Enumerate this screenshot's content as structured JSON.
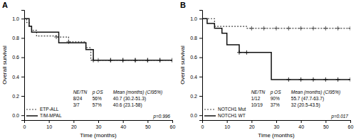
{
  "chart_data": [
    {
      "type": "step",
      "title": "A",
      "x_label": "Time (months)",
      "y_label": "Overall survival",
      "xlim": [
        0,
        60
      ],
      "ylim": [
        -0.05,
        1.09
      ],
      "xticks": [
        0,
        10,
        20,
        30,
        40,
        50,
        60
      ],
      "yticks": [
        {
          "value": 0.0,
          "label": "0.0"
        },
        0.2,
        0.4,
        0.6,
        0.8,
        {
          "value": 1.0,
          "label": "1.0"
        }
      ],
      "legend": "lower left",
      "series": [
        {
          "name": "ETP-ALL",
          "color": "#444444",
          "line_style": "dotted",
          "marker": "plus",
          "x": [
            0,
            1,
            2,
            3,
            5,
            8,
            10,
            13,
            15,
            18,
            20,
            25,
            27,
            30,
            60
          ],
          "values": [
            1.0,
            0.96,
            0.92,
            0.88,
            0.82,
            0.82,
            0.82,
            0.81,
            0.81,
            0.76,
            0.76,
            0.7,
            0.57,
            0.57,
            0.57
          ],
          "censor_x": [
            13,
            18,
            30,
            35,
            40,
            45,
            50,
            55,
            60
          ],
          "censor_values": [
            0.81,
            0.76,
            0.57,
            0.57,
            0.57,
            0.57,
            0.57,
            0.57,
            0.57
          ]
        },
        {
          "name": "T/M-MPAL",
          "color": "#111111",
          "line_style": "solid",
          "marker": "plus",
          "x": [
            0,
            2,
            3,
            10,
            13,
            14,
            17,
            25,
            27,
            28,
            60
          ],
          "values": [
            1.0,
            0.92,
            0.86,
            0.86,
            0.86,
            0.75,
            0.75,
            0.68,
            0.68,
            0.57,
            0.57
          ],
          "censor_x": [
            28,
            35,
            40,
            45,
            50,
            55,
            60
          ],
          "censor_values": [
            0.57,
            0.57,
            0.57,
            0.57,
            0.57,
            0.57,
            0.57
          ]
        }
      ],
      "table": {
        "header": [
          "NE/TN",
          "p OS",
          "Mean (months) (CI95%)"
        ],
        "rows": [
          [
            "8/24",
            "56%",
            "40.7 (30.2-51.3)"
          ],
          [
            "3/7",
            "57%",
            "40.6 (23.1-58)"
          ]
        ]
      },
      "annotations": [
        "p=0.996"
      ]
    },
    {
      "type": "step",
      "title": "B",
      "x_label": "Time (months)",
      "y_label": "Overall survival",
      "xlim": [
        0,
        60
      ],
      "ylim": [
        -0.05,
        1.09
      ],
      "xticks": [
        0,
        10,
        20,
        30,
        40,
        50,
        60
      ],
      "yticks": [
        {
          "value": 0.0,
          "label": "0.0"
        },
        0.2,
        0.4,
        0.6,
        0.8,
        {
          "value": 1.0,
          "label": "1.0"
        }
      ],
      "legend": "lower left",
      "series": [
        {
          "name": "NOTCH1 Mut",
          "color": "#444444",
          "line_style": "dotted",
          "marker": "plus",
          "x": [
            0,
            3,
            5,
            13,
            18,
            60
          ],
          "values": [
            1.0,
            1.0,
            0.92,
            0.92,
            0.9,
            0.9
          ],
          "censor_x": [
            20,
            25,
            30,
            35,
            40,
            45,
            50,
            55,
            60
          ],
          "censor_values": [
            0.9,
            0.9,
            0.9,
            0.9,
            0.9,
            0.9,
            0.9,
            0.9,
            0.9
          ]
        },
        {
          "name": "NOTCH1 WT",
          "color": "#111111",
          "line_style": "solid",
          "marker": "plus",
          "x": [
            0,
            2,
            5,
            8,
            10,
            13,
            15,
            18,
            25,
            28,
            60
          ],
          "values": [
            1.0,
            0.95,
            0.9,
            0.85,
            0.73,
            0.73,
            0.65,
            0.65,
            0.65,
            0.37,
            0.37
          ],
          "censor_x": [
            15,
            18,
            35,
            40,
            45,
            50,
            55,
            60
          ],
          "censor_values": [
            0.65,
            0.65,
            0.37,
            0.37,
            0.37,
            0.37,
            0.37,
            0.37
          ]
        }
      ],
      "table": {
        "header": [
          "NE/TN",
          "p OS",
          "Mean (months) (CI95%)"
        ],
        "rows": [
          [
            "1/12",
            "90%",
            "55.7 (47.7-63.7)"
          ],
          [
            "10/19",
            "37%",
            "32 (20.5-43.5)"
          ]
        ]
      },
      "annotations": [
        "p=0.017"
      ]
    }
  ]
}
